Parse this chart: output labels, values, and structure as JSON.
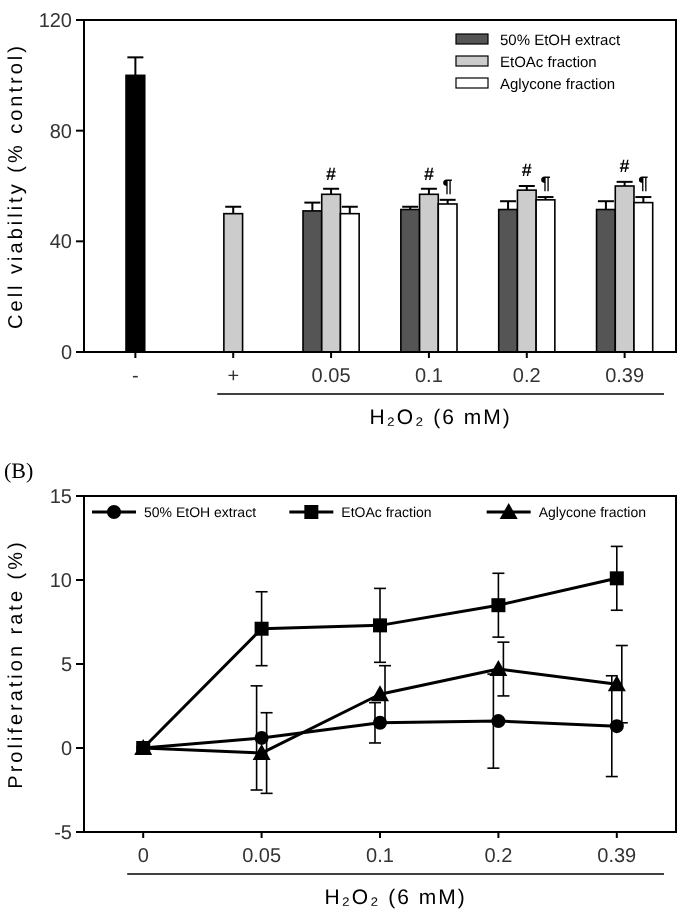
{
  "chart_data": [
    {
      "type": "bar",
      "ylabel": "Cell viability (% control)",
      "xlabel": "H₂O₂ (6 mM)",
      "categories": [
        "-",
        "+",
        "0.05",
        "0.1",
        "0.2",
        "0.39"
      ],
      "ylim": [
        0,
        120
      ],
      "yticks": [
        0,
        40,
        80,
        120
      ],
      "legend": "top right",
      "grid": false,
      "series": [
        {
          "colors": [
            "#000000",
            "#cccccc",
            null,
            null,
            null,
            null
          ],
          "values": [
            100,
            50,
            null,
            null,
            null,
            null
          ],
          "errors": [
            6.5,
            2.5,
            null,
            null,
            null,
            null
          ]
        },
        {
          "name": "50% EtOH extract",
          "color": "#555555",
          "values": [
            null,
            null,
            51,
            51.5,
            51.5,
            51.5
          ],
          "errors": [
            null,
            null,
            3,
            1,
            3,
            3
          ]
        },
        {
          "name": "EtOAc fraction",
          "color": "#cccccc",
          "values": [
            null,
            null,
            57,
            57,
            58.5,
            60
          ],
          "errors": [
            null,
            null,
            2,
            2,
            1.5,
            1.5
          ]
        },
        {
          "name": "Aglycone fraction",
          "color": "#ffffff",
          "values": [
            null,
            null,
            50,
            53.5,
            55,
            54
          ],
          "errors": [
            null,
            null,
            2.5,
            1.5,
            1,
            2
          ]
        }
      ],
      "annotations": [
        {
          "text": "#",
          "x": "0.05",
          "y": 62
        },
        {
          "text": "#",
          "x": "0.1",
          "y": 62
        },
        {
          "text": "#",
          "x": "0.2",
          "y": 63.5
        },
        {
          "text": "#",
          "x": "0.39",
          "y": 65
        },
        {
          "text": "¶",
          "x": "0.1",
          "y": 58
        },
        {
          "text": "¶",
          "x": "0.2",
          "y": 59
        },
        {
          "text": "¶",
          "x": "0.39",
          "y": 59
        }
      ]
    },
    {
      "type": "line",
      "title": "(B)",
      "ylabel": "Proliferation rate (%)",
      "xlabel": "H₂O₂ (6 mM)",
      "categories": [
        "0",
        "0.05",
        "0.1",
        "0.2",
        "0.39"
      ],
      "ylim": [
        -5,
        15
      ],
      "yticks": [
        -5,
        0,
        5,
        10,
        15
      ],
      "legend": "top",
      "grid": false,
      "line_style": "solid",
      "series": [
        {
          "name": "50% EtOH extract",
          "color": "#000000",
          "marker": "circle",
          "values": [
            0,
            0.6,
            1.5,
            1.6,
            1.3
          ],
          "errors": [
            null,
            3.1,
            1.2,
            2.8,
            3
          ]
        },
        {
          "name": "EtOAc fraction",
          "color": "#000000",
          "marker": "square",
          "values": [
            0,
            7.1,
            7.3,
            8.5,
            10.1
          ],
          "errors": [
            null,
            2.2,
            2.2,
            1.9,
            1.9
          ]
        },
        {
          "name": "Aglycone fraction",
          "color": "#000000",
          "marker": "triangle",
          "values": [
            0,
            -0.3,
            3.2,
            4.7,
            3.8
          ],
          "errors": [
            null,
            2.4,
            1.7,
            1.6,
            2.3
          ]
        }
      ]
    }
  ]
}
